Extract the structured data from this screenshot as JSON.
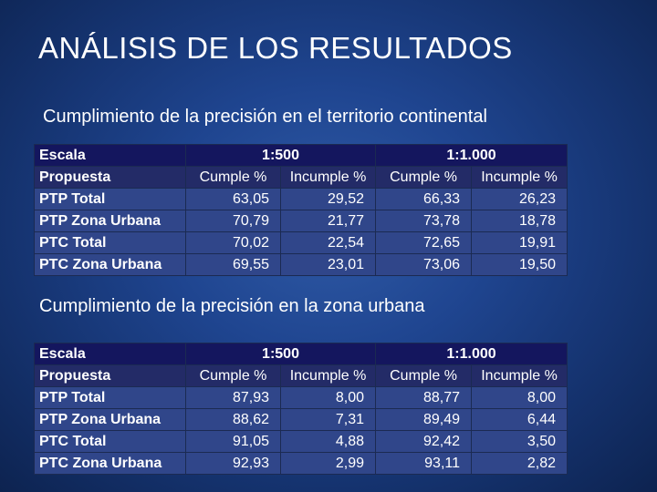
{
  "title": "ANÁLISIS DE LOS RESULTADOS",
  "sections": [
    {
      "subtitle": "Cumplimiento de la precisión en el territorio continental",
      "row_header": {
        "escala": "Escala",
        "propuesta": "Propuesta"
      },
      "scales": [
        "1:500",
        "1:1.000"
      ],
      "columns": [
        "Cumple %",
        "Incumple %",
        "Cumple %",
        "Incumple %"
      ],
      "rows": [
        {
          "label": "PTP Total",
          "values": [
            "63,05",
            "29,52",
            "66,33",
            "26,23"
          ]
        },
        {
          "label": "PTP Zona Urbana",
          "values": [
            "70,79",
            "21,77",
            "73,78",
            "18,78"
          ]
        },
        {
          "label": "PTC Total",
          "values": [
            "70,02",
            "22,54",
            "72,65",
            "19,91"
          ]
        },
        {
          "label": "PTC Zona Urbana",
          "values": [
            "69,55",
            "23,01",
            "73,06",
            "19,50"
          ]
        }
      ]
    },
    {
      "subtitle": "Cumplimiento de la precisión en la zona urbana",
      "row_header": {
        "escala": "Escala",
        "propuesta": "Propuesta"
      },
      "scales": [
        "1:500",
        "1:1.000"
      ],
      "columns": [
        "Cumple %",
        "Incumple %",
        "Cumple %",
        "Incumple %"
      ],
      "rows": [
        {
          "label": "PTP Total",
          "values": [
            "87,93",
            "8,00",
            "88,77",
            "8,00"
          ]
        },
        {
          "label": "PTP Zona Urbana",
          "values": [
            "88,62",
            "7,31",
            "89,49",
            "6,44"
          ]
        },
        {
          "label": "PTC Total",
          "values": [
            "91,05",
            "4,88",
            "92,42",
            "3,50"
          ]
        },
        {
          "label": "PTC Zona Urbana",
          "values": [
            "92,93",
            "2,99",
            "93,11",
            "2,82"
          ]
        }
      ]
    }
  ]
}
